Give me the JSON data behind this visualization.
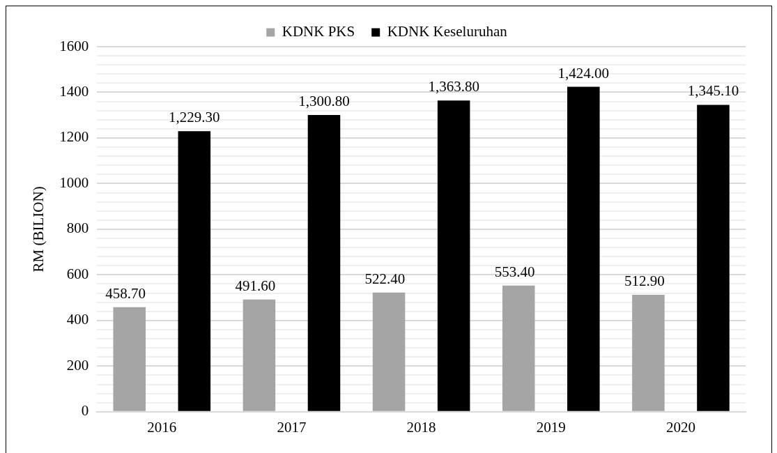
{
  "chart_data": {
    "type": "bar",
    "ylabel": "RM (BILION)",
    "categories": [
      "2016",
      "2017",
      "2018",
      "2019",
      "2020"
    ],
    "series": [
      {
        "name": "KDNK PKS",
        "color": "#a5a5a5",
        "values": [
          458.7,
          491.6,
          522.4,
          553.4,
          512.9
        ],
        "value_labels": [
          "458.70",
          "491.60",
          "522.40",
          "553.40",
          "512.90"
        ]
      },
      {
        "name": "KDNK Keseluruhan",
        "color": "#000000",
        "values": [
          1229.3,
          1300.8,
          1363.8,
          1424.0,
          1345.1
        ],
        "value_labels": [
          "1,229.30",
          "1,300.80",
          "1,363.80",
          "1,424.00",
          "1,345.10"
        ]
      }
    ],
    "ylim": [
      0,
      1600
    ],
    "yticks": [
      0,
      {
        "value": 40,
        "label": null
      },
      {
        "value": 80,
        "label": null
      },
      {
        "value": 120,
        "label": null
      },
      {
        "value": 160,
        "label": null
      },
      200,
      {
        "value": 240,
        "label": null
      },
      {
        "value": 280,
        "label": null
      },
      {
        "value": 320,
        "label": null
      },
      {
        "value": 360,
        "label": null
      },
      400,
      {
        "value": 440,
        "label": null
      },
      {
        "value": 480,
        "label": null
      },
      {
        "value": 520,
        "label": null
      },
      {
        "value": 560,
        "label": null
      },
      600,
      {
        "value": 640,
        "label": null
      },
      {
        "value": 680,
        "label": null
      },
      {
        "value": 720,
        "label": null
      },
      {
        "value": 760,
        "label": null
      },
      800,
      {
        "value": 840,
        "label": null
      },
      {
        "value": 880,
        "label": null
      },
      {
        "value": 920,
        "label": null
      },
      {
        "value": 960,
        "label": null
      },
      1000,
      {
        "value": 1040,
        "label": null
      },
      {
        "value": 1080,
        "label": null
      },
      {
        "value": 1120,
        "label": null
      },
      {
        "value": 1160,
        "label": null
      },
      1200,
      {
        "value": 1240,
        "label": null
      },
      {
        "value": 1280,
        "label": null
      },
      {
        "value": 1320,
        "label": null
      },
      {
        "value": 1360,
        "label": null
      },
      1400,
      {
        "value": 1440,
        "label": null
      },
      {
        "value": 1480,
        "label": null
      },
      {
        "value": 1520,
        "label": null
      },
      {
        "value": 1560,
        "label": null
      },
      1600
    ],
    "grid": "y",
    "legend": "top"
  }
}
